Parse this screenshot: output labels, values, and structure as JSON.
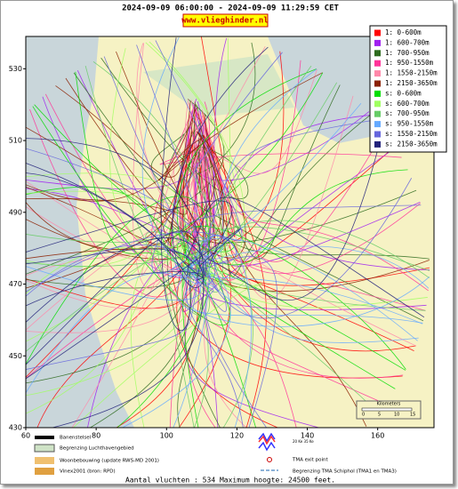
{
  "header": {
    "title": "2024-09-09 06:00:00 - 2024-09-09 11:29:59 CET",
    "site": "www.vlieghinder.nl"
  },
  "map": {
    "xlim": [
      60,
      176
    ],
    "ylim": [
      430,
      539
    ],
    "xticks": [
      60,
      80,
      100,
      120,
      140,
      160
    ],
    "yticks": [
      430,
      450,
      470,
      490,
      510,
      530
    ]
  },
  "legend": [
    {
      "label": "1: 0-600m",
      "color": "#ff0000"
    },
    {
      "label": "1: 600-700m",
      "color": "#a020f0"
    },
    {
      "label": "1: 700-950m",
      "color": "#2e6b1e"
    },
    {
      "label": "1: 950-1550m",
      "color": "#ff3399"
    },
    {
      "label": "1: 1550-2150m",
      "color": "#ff88aa"
    },
    {
      "label": "1: 2150-3650m",
      "color": "#8b2000"
    },
    {
      "label": "s: 0-600m",
      "color": "#00dd00"
    },
    {
      "label": "s: 600-700m",
      "color": "#a0ff60"
    },
    {
      "label": "s: 700-950m",
      "color": "#66cc66"
    },
    {
      "label": "s: 950-1550m",
      "color": "#66aaff"
    },
    {
      "label": "s: 1550-2150m",
      "color": "#6666dd"
    },
    {
      "label": "s: 2150-3650m",
      "color": "#22227a"
    }
  ],
  "scale": {
    "title": "Kilometers",
    "labels": [
      "0",
      "5",
      "10",
      "15"
    ]
  },
  "key": {
    "runways": "Banenstelsel",
    "airport": "Begrenzing Luchthavengebied",
    "housing": "Woonbebouwing (update RWS-MD 2001)",
    "vinex": "Vinex2001 (bron: RPD)",
    "noise": "20 Ke\n35 Ke",
    "exit": "TMA exit point",
    "tma": "Begrenzing TMA Schiphol  (TMA1 en TMA3)"
  },
  "footer": "Aantal vluchten : 534 Maximum hoogte: 24500 feet."
}
